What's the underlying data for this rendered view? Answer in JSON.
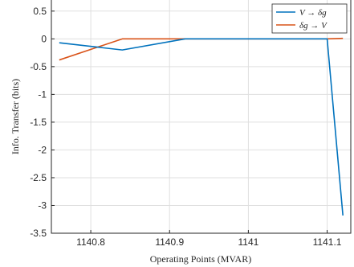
{
  "chart_data": {
    "type": "line",
    "title": "",
    "xlabel": "Operating Points (MVAR)",
    "ylabel": "Info. Transfer (bits)",
    "xlim": [
      1140.75,
      1141.13
    ],
    "ylim": [
      -3.5,
      0.7
    ],
    "xticks": [
      1140.8,
      1140.9,
      1141,
      1141.1
    ],
    "xtick_labels": [
      "1140.8",
      "1140.9",
      "1141",
      "1141.1"
    ],
    "yticks": [
      0.5,
      0,
      -0.5,
      -1,
      -1.5,
      -2,
      -2.5,
      -3,
      -3.5
    ],
    "ytick_labels": [
      "0.5",
      "0",
      "-0.5",
      "-1",
      "-1.5",
      "-2",
      "-2.5",
      "-3",
      "-3.5"
    ],
    "grid": true,
    "legend_position": "top-right",
    "series": [
      {
        "name": "V → δg",
        "color": "#0072BD",
        "x": [
          1140.76,
          1140.84,
          1140.92,
          1141.0,
          1141.1,
          1141.12
        ],
        "y": [
          -0.07,
          -0.2,
          0.0,
          0.0,
          0.0,
          -3.18
        ]
      },
      {
        "name": "δg → V",
        "color": "#D95319",
        "x": [
          1140.76,
          1140.84,
          1140.92,
          1141.0,
          1141.1,
          1141.12
        ],
        "y": [
          -0.38,
          0.0,
          0.0,
          0.0,
          0.0,
          0.01
        ]
      }
    ]
  }
}
